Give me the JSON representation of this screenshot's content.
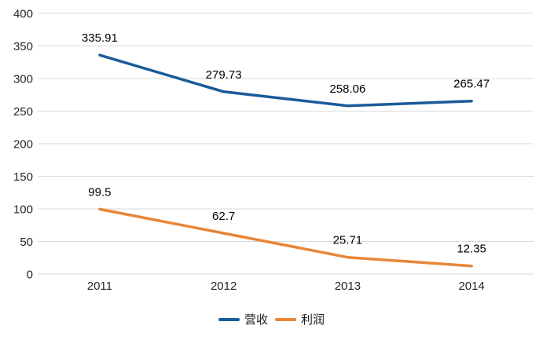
{
  "chart": {
    "background": "#ffffff",
    "grid_color": "#d9d9d9",
    "axis_label_color": "#262626",
    "data_label_color": "#000000"
  },
  "chart_data": {
    "type": "line",
    "title": "",
    "categories": [
      "2011",
      "2012",
      "2013",
      "2014"
    ],
    "series": [
      {
        "name": "营收",
        "color": "#1a5b99",
        "values": [
          335.91,
          279.73,
          258.06,
          265.47
        ]
      },
      {
        "name": "利润",
        "color": "#e88638",
        "values": [
          99.5,
          62.7,
          25.71,
          12.35
        ]
      }
    ],
    "xlabel": "",
    "ylabel": "",
    "ylim": [
      0,
      400
    ],
    "y_ticks": [
      0,
      50,
      100,
      150,
      200,
      250,
      300,
      350,
      400
    ],
    "grid": "horizontal",
    "legend_position": "bottom",
    "data_labels": true
  }
}
